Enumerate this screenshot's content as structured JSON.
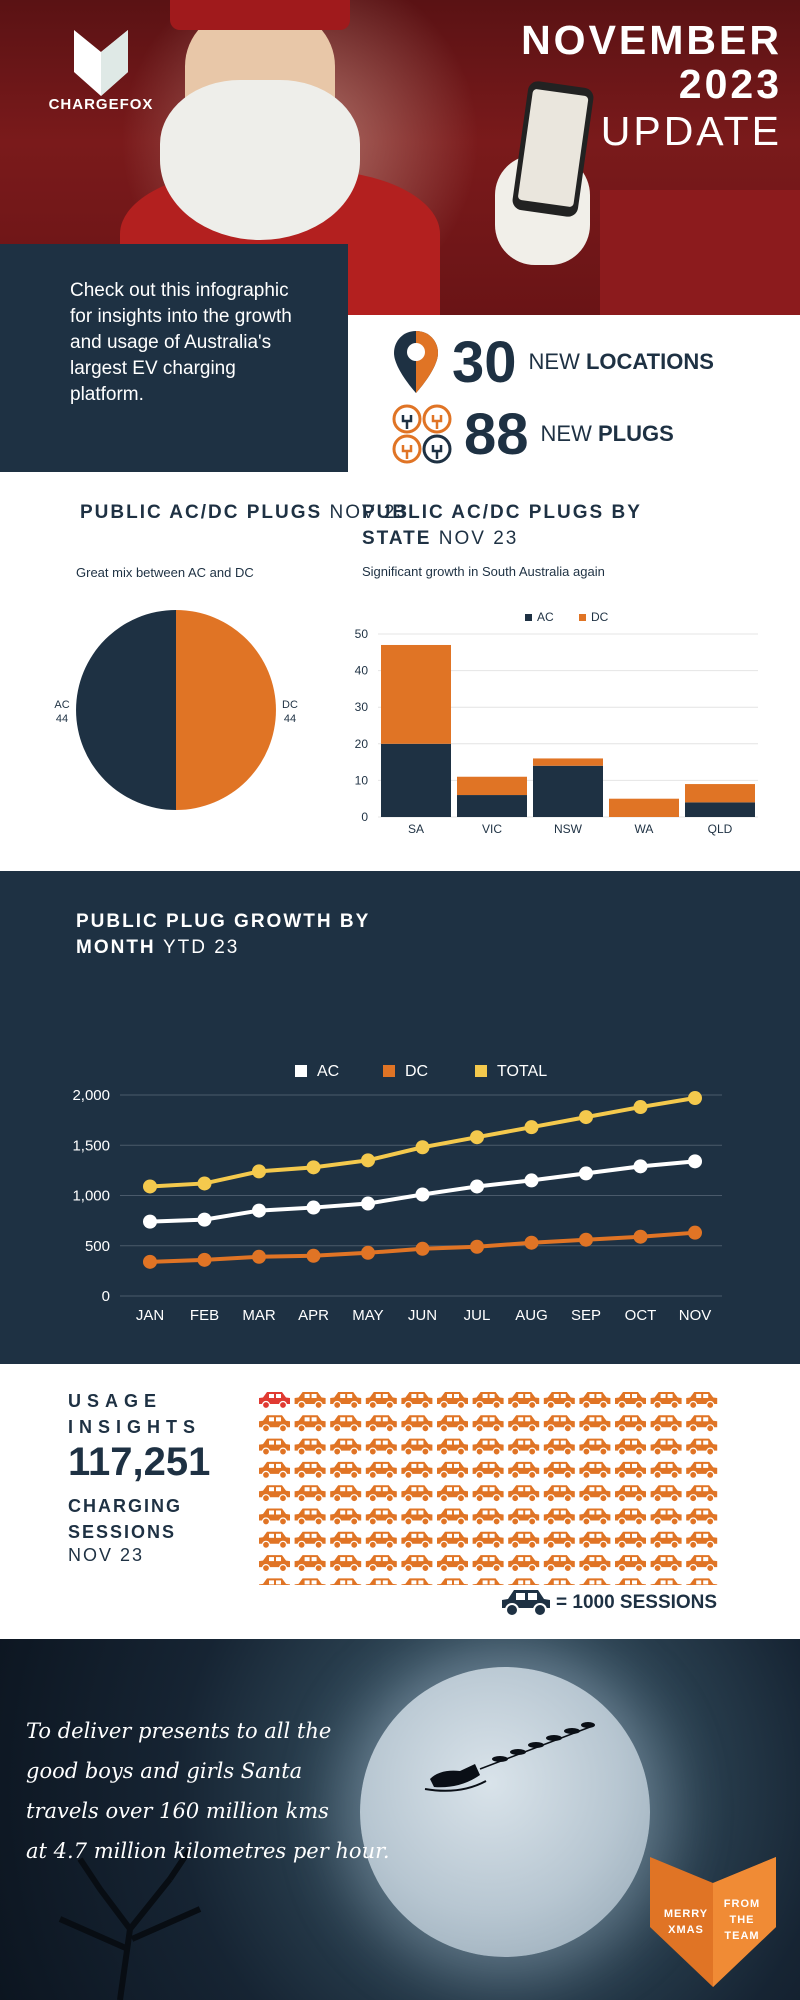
{
  "header": {
    "brand": "CHARGEFOX",
    "title_line1": "NOVEMBER",
    "title_line2": "2023",
    "title_line3": "UPDATE"
  },
  "intro": {
    "text": "Check out this infographic for insights into the growth and usage of Australia's largest EV charging platform."
  },
  "stats": {
    "locations_value": "30",
    "locations_prefix": "NEW",
    "locations_label": "LOCATIONS",
    "plugs_value": "88",
    "plugs_prefix": "NEW",
    "plugs_label": "PLUGS"
  },
  "colors": {
    "navy": "#1e3143",
    "orange": "#e07425",
    "yellow": "#f4c94d",
    "white": "#ffffff"
  },
  "chart_data": [
    {
      "type": "pie",
      "title_bold": "PUBLIC AC/DC PLUGS",
      "title_light": "NOV 23",
      "subtitle": "Great mix between AC and DC",
      "categories": [
        "AC",
        "DC"
      ],
      "values": [
        44,
        44
      ]
    },
    {
      "type": "bar",
      "stacked": true,
      "title_bold": "PUBLIC AC/DC PLUGS BY STATE",
      "title_light": "NOV 23",
      "subtitle": "Significant growth in South Australia again",
      "categories": [
        "SA",
        "VIC",
        "NSW",
        "WA",
        "QLD"
      ],
      "series": [
        {
          "name": "AC",
          "values": [
            20,
            6,
            14,
            0,
            4
          ]
        },
        {
          "name": "DC",
          "values": [
            27,
            5,
            2,
            5,
            5
          ]
        }
      ],
      "yticks": [
        0,
        10,
        20,
        30,
        40,
        50
      ],
      "ylim": [
        0,
        50
      ]
    },
    {
      "type": "line",
      "title_bold": "PUBLIC PLUG GROWTH BY MONTH",
      "title_light": "YTD 23",
      "categories": [
        "JAN",
        "FEB",
        "MAR",
        "APR",
        "MAY",
        "JUN",
        "JUL",
        "AUG",
        "SEP",
        "OCT",
        "NOV"
      ],
      "series": [
        {
          "name": "AC",
          "values": [
            740,
            760,
            850,
            880,
            920,
            1010,
            1090,
            1150,
            1220,
            1290,
            1340
          ]
        },
        {
          "name": "DC",
          "values": [
            340,
            360,
            390,
            400,
            430,
            470,
            490,
            530,
            560,
            590,
            630
          ]
        },
        {
          "name": "TOTAL",
          "values": [
            1090,
            1120,
            1240,
            1280,
            1350,
            1480,
            1580,
            1680,
            1780,
            1880,
            1970
          ]
        }
      ],
      "yticks": [
        "0",
        "500",
        "1,000",
        "1,500",
        "2,000"
      ],
      "ylim": [
        0,
        2000
      ]
    },
    {
      "type": "pictograph",
      "title": "USAGE INSIGHTS",
      "value": "117,251",
      "label": "CHARGING SESSIONS",
      "period": "NOV 23",
      "unit_label": "= 1000 SESSIONS",
      "unit_value": 1000,
      "icon_count": 117,
      "highlight_index": 0
    }
  ],
  "closing": {
    "poem_lines": [
      "To deliver presents to all the",
      "good boys and girls Santa",
      "travels over 160 million kms",
      "at 4.7 million  kilometres per hour."
    ],
    "badge_left": [
      "MERRY",
      "XMAS"
    ],
    "badge_right": [
      "FROM",
      "THE",
      "TEAM"
    ]
  }
}
